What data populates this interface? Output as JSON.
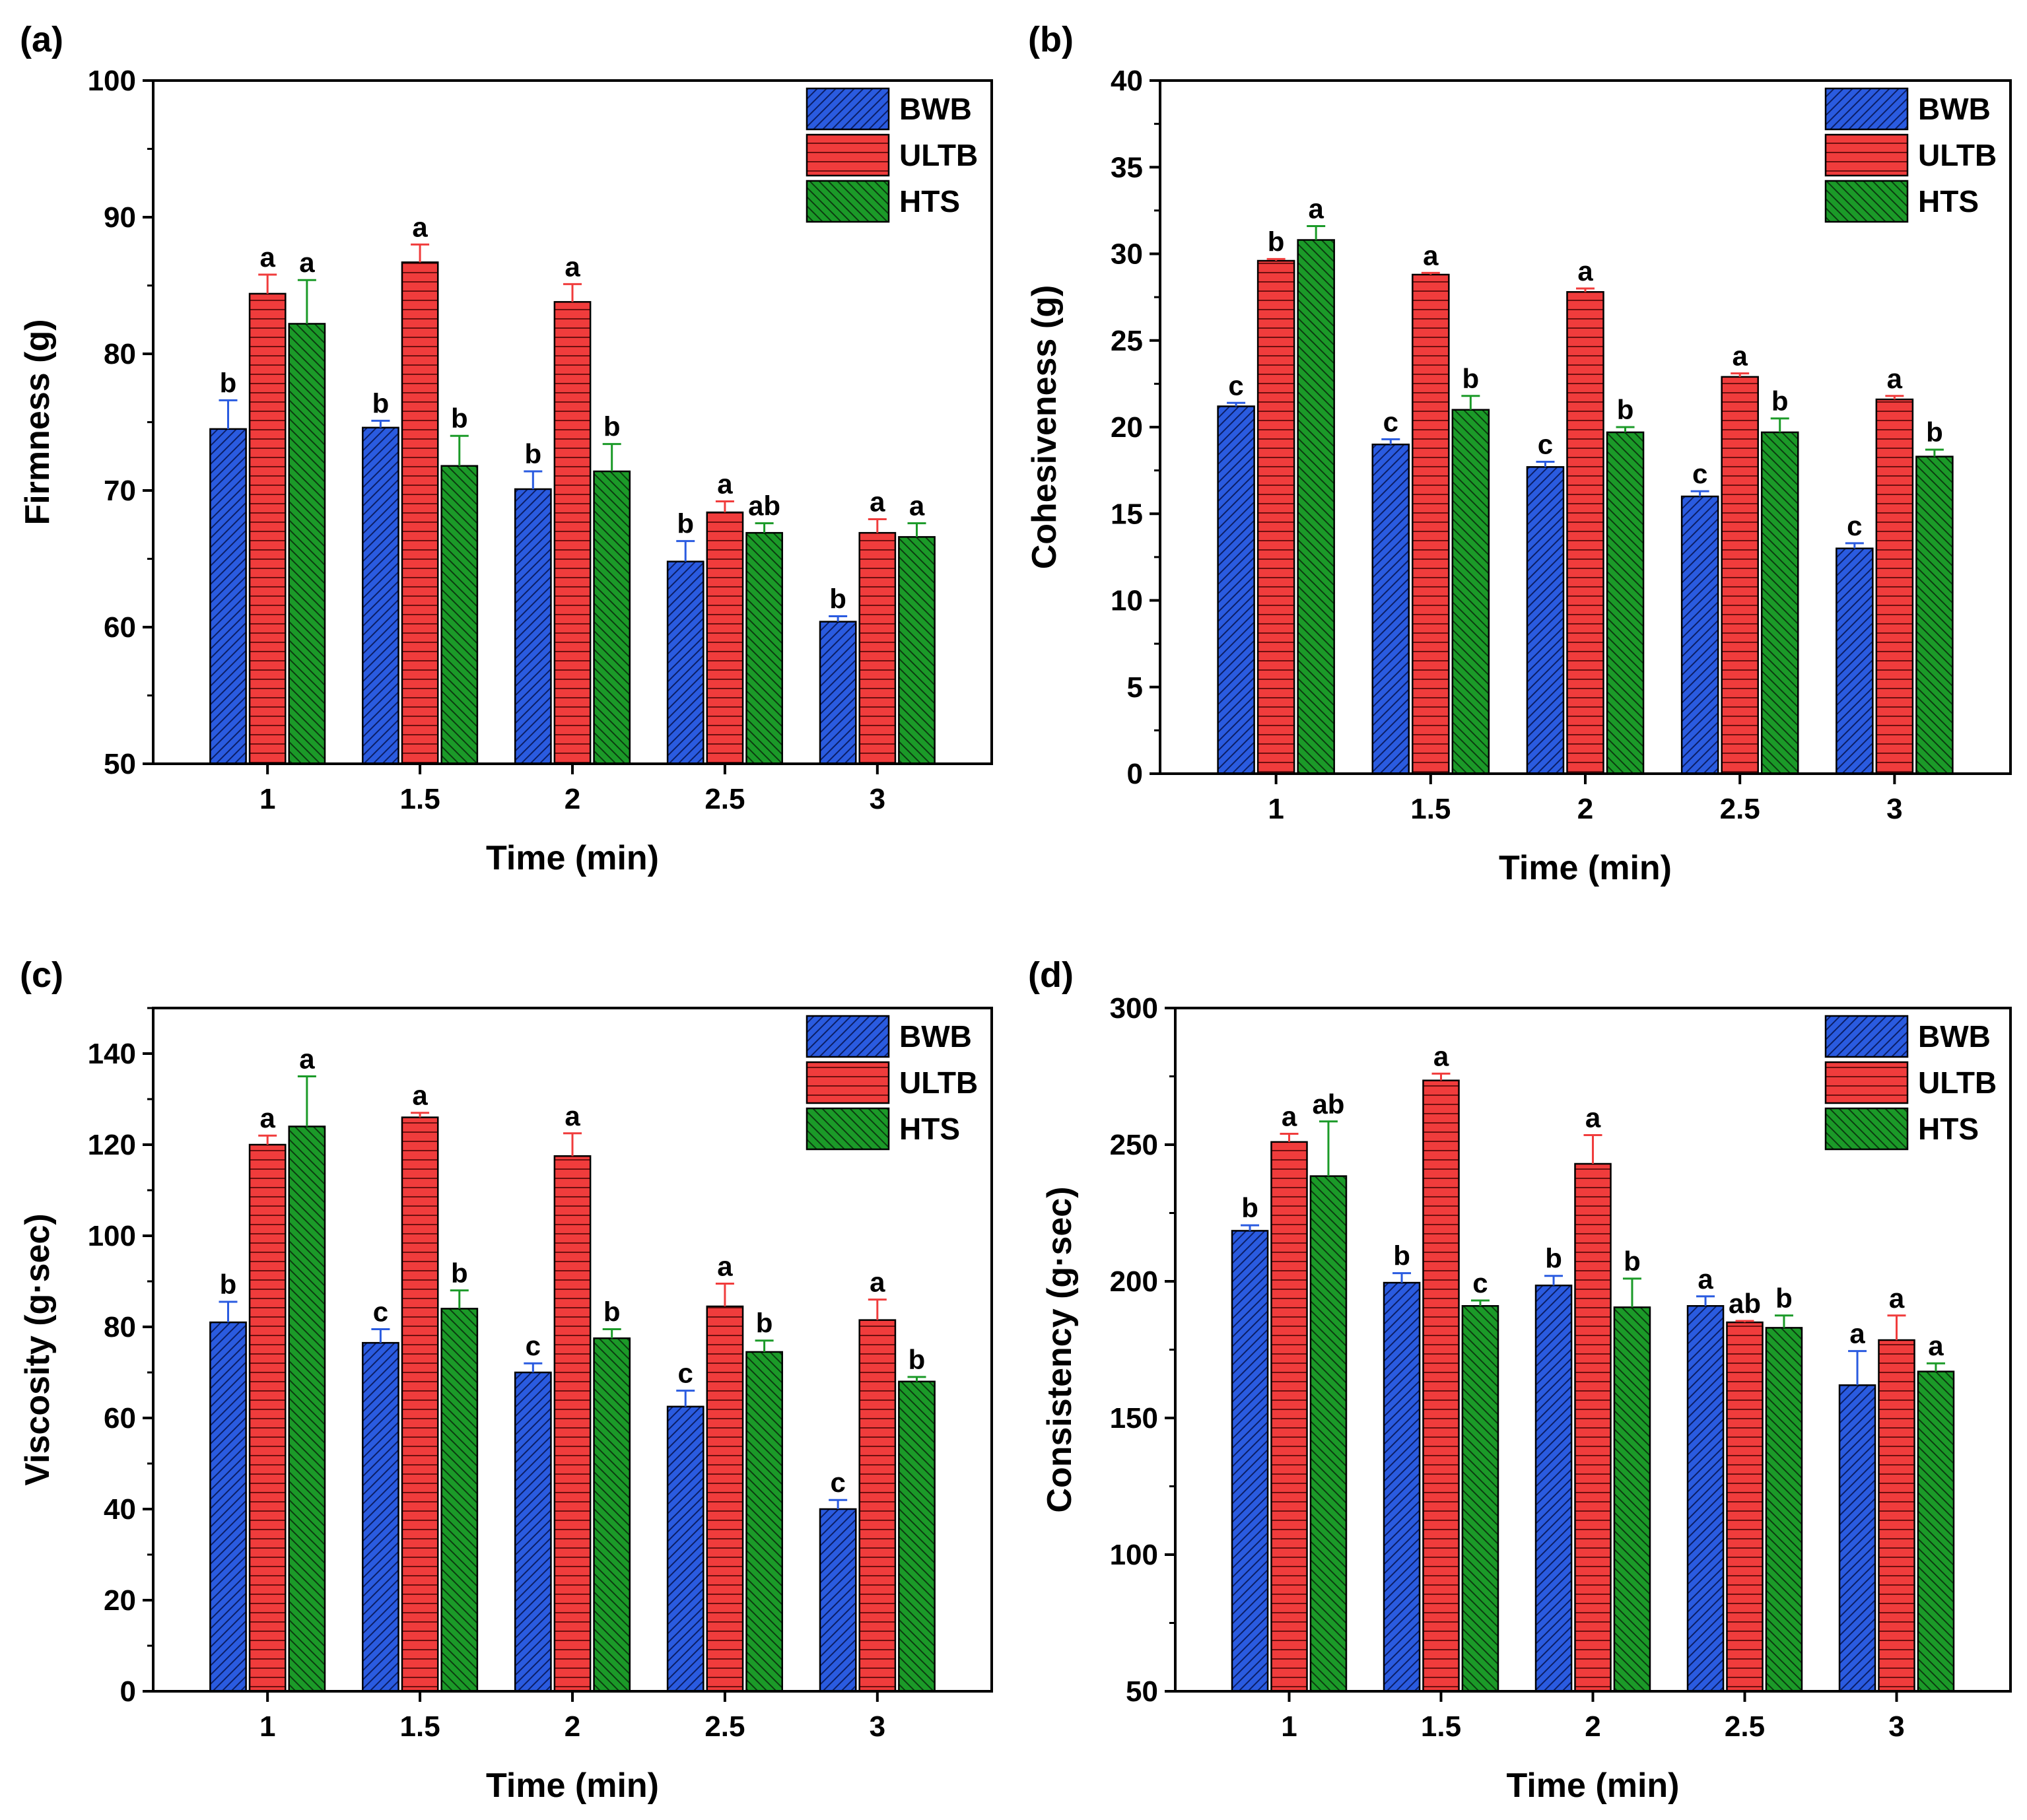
{
  "colors": {
    "BWB": "#2a5be0",
    "ULTB": "#f03c3c",
    "HTS": "#1b9a28",
    "axis": "#000000"
  },
  "legend": [
    {
      "key": "BWB",
      "label": "BWB"
    },
    {
      "key": "ULTB",
      "label": "ULTB"
    },
    {
      "key": "HTS",
      "label": "HTS"
    }
  ],
  "chart_data": [
    {
      "type": "bar",
      "panel_label": "(a)",
      "xlabel": "Time (min)",
      "ylabel": "Firmness (g)",
      "categories": [
        "1",
        "1.5",
        "2",
        "2.5",
        "3"
      ],
      "ylim": [
        50,
        100
      ],
      "yticks": [
        50,
        60,
        70,
        80,
        90,
        100
      ],
      "series": [
        {
          "name": "BWB",
          "values": [
            74.5,
            74.6,
            70.1,
            64.8,
            60.4
          ],
          "errors": [
            2.1,
            0.5,
            1.3,
            1.5,
            0.4
          ],
          "letters": [
            "b",
            "b",
            "b",
            "b",
            "b"
          ]
        },
        {
          "name": "ULTB",
          "values": [
            84.4,
            86.7,
            83.8,
            68.4,
            66.9
          ],
          "errors": [
            1.4,
            1.3,
            1.3,
            0.8,
            1.0
          ],
          "letters": [
            "a",
            "a",
            "a",
            "a",
            "a"
          ]
        },
        {
          "name": "HTS",
          "values": [
            82.2,
            71.8,
            71.4,
            66.9,
            66.6
          ],
          "errors": [
            3.2,
            2.2,
            2.0,
            0.7,
            1.0
          ],
          "letters": [
            "a",
            "b",
            "b",
            "ab",
            "a"
          ]
        }
      ]
    },
    {
      "type": "bar",
      "panel_label": "(b)",
      "xlabel": "Time (min)",
      "ylabel": "Cohesiveness (g)",
      "categories": [
        "1",
        "1.5",
        "2",
        "2.5",
        "3"
      ],
      "ylim": [
        0,
        40
      ],
      "yticks": [
        0,
        5,
        10,
        15,
        20,
        25,
        30,
        35,
        40
      ],
      "series": [
        {
          "name": "BWB",
          "values": [
            21.2,
            19.0,
            17.7,
            16.0,
            13.0
          ],
          "errors": [
            0.2,
            0.3,
            0.3,
            0.3,
            0.3
          ],
          "letters": [
            "c",
            "c",
            "c",
            "c",
            "c"
          ]
        },
        {
          "name": "ULTB",
          "values": [
            29.6,
            28.8,
            27.8,
            22.9,
            21.6
          ],
          "errors": [
            0.1,
            0.1,
            0.2,
            0.2,
            0.2
          ],
          "letters": [
            "b",
            "a",
            "a",
            "a",
            "a"
          ]
        },
        {
          "name": "HTS",
          "values": [
            30.8,
            21.0,
            19.7,
            19.7,
            18.3
          ],
          "errors": [
            0.8,
            0.8,
            0.3,
            0.8,
            0.4
          ],
          "letters": [
            "a",
            "b",
            "b",
            "b",
            "b"
          ]
        }
      ]
    },
    {
      "type": "bar",
      "panel_label": "(c)",
      "xlabel": "Time (min)",
      "ylabel": "Viscosity (g·sec)",
      "categories": [
        "1",
        "1.5",
        "2",
        "2.5",
        "3"
      ],
      "ylim": [
        0,
        150
      ],
      "yticks": [
        0,
        20,
        40,
        60,
        80,
        100,
        120,
        140
      ],
      "series": [
        {
          "name": "BWB",
          "values": [
            81.0,
            76.5,
            70.0,
            62.5,
            40.0
          ],
          "errors": [
            4.5,
            3.0,
            2.0,
            3.5,
            2.0
          ],
          "letters": [
            "b",
            "c",
            "c",
            "c",
            "c"
          ]
        },
        {
          "name": "ULTB",
          "values": [
            120.0,
            126.0,
            117.5,
            84.5,
            81.5
          ],
          "errors": [
            2.0,
            1.0,
            5.0,
            5.0,
            4.5
          ],
          "letters": [
            "a",
            "a",
            "a",
            "a",
            "a"
          ]
        },
        {
          "name": "HTS",
          "values": [
            124.0,
            84.0,
            77.5,
            74.5,
            68.0
          ],
          "errors": [
            11.0,
            4.0,
            2.0,
            2.5,
            1.0
          ],
          "letters": [
            "a",
            "b",
            "b",
            "b",
            "b"
          ]
        }
      ]
    },
    {
      "type": "bar",
      "panel_label": "(d)",
      "xlabel": "Time (min)",
      "ylabel": "Consistency (g·sec)",
      "categories": [
        "1",
        "1.5",
        "2",
        "2.5",
        "3"
      ],
      "ylim": [
        50,
        300
      ],
      "yticks": [
        50,
        100,
        150,
        200,
        250,
        300
      ],
      "series": [
        {
          "name": "BWB",
          "values": [
            218.5,
            199.5,
            198.5,
            191.0,
            162.0
          ],
          "errors": [
            2.0,
            3.5,
            3.5,
            3.5,
            12.5
          ],
          "letters": [
            "b",
            "b",
            "b",
            "a",
            "a"
          ]
        },
        {
          "name": "ULTB",
          "values": [
            251.0,
            273.5,
            243.0,
            185.0,
            178.5
          ],
          "errors": [
            3.0,
            2.5,
            10.5,
            0.5,
            9.0
          ],
          "letters": [
            "a",
            "a",
            "a",
            "ab",
            "a"
          ]
        },
        {
          "name": "HTS",
          "values": [
            238.5,
            191.0,
            190.5,
            183.0,
            167.0
          ],
          "errors": [
            20.0,
            2.0,
            10.5,
            4.5,
            3.0
          ],
          "letters": [
            "ab",
            "c",
            "b",
            "b",
            "a"
          ]
        }
      ]
    }
  ]
}
